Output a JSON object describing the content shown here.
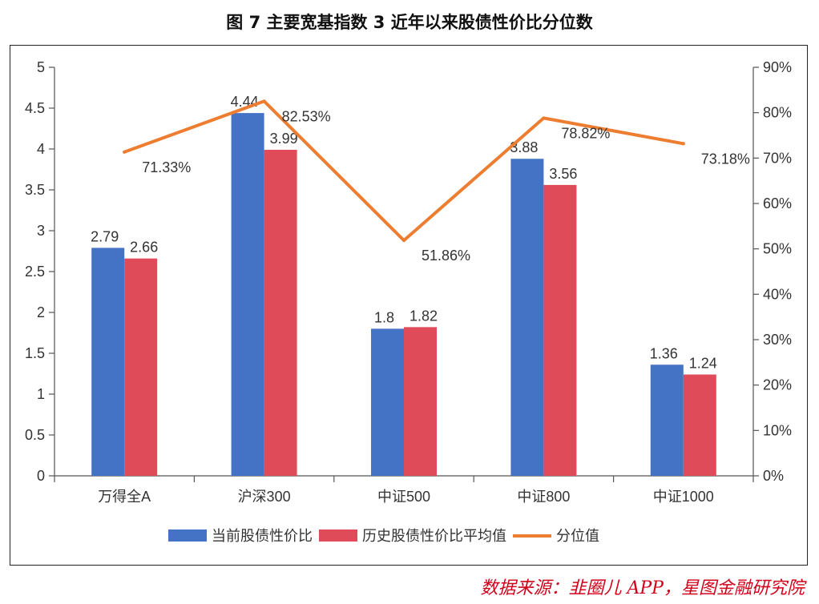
{
  "title": "图 7 主要宽基指数 3 近年以来股债性价比分位数",
  "source": "数据来源：韭圈儿 APP，星图金融研究院",
  "chart_data": {
    "type": "bar",
    "categories": [
      "万得全A",
      "沪深300",
      "中证500",
      "中证800",
      "中证1000"
    ],
    "series": [
      {
        "name": "当前股债性价比",
        "type": "bar",
        "axis": "left",
        "color": "#4472c4",
        "values": [
          2.79,
          4.44,
          1.8,
          3.88,
          1.36
        ],
        "labels": [
          "2.79",
          "4.44",
          "1.8",
          "3.88",
          "1.36"
        ]
      },
      {
        "name": "历史股债性价比平均值",
        "type": "bar",
        "axis": "left",
        "color": "#e04b5a",
        "values": [
          2.66,
          3.99,
          1.82,
          3.56,
          1.24
        ],
        "labels": [
          "2.66",
          "3.99",
          "1.82",
          "3.56",
          "1.24"
        ]
      },
      {
        "name": "分位值",
        "type": "line",
        "axis": "right",
        "color": "#ed7d31",
        "values": [
          71.33,
          82.53,
          51.86,
          78.82,
          73.18
        ],
        "labels": [
          "71.33%",
          "82.53%",
          "51.86%",
          "78.82%",
          "73.18%"
        ]
      }
    ],
    "y_left": {
      "min": 0,
      "max": 5,
      "ticks": [
        "0",
        "0.5",
        "1",
        "1.5",
        "2",
        "2.5",
        "3",
        "3.5",
        "4",
        "4.5",
        "5"
      ]
    },
    "y_right": {
      "min": 0,
      "max": 90,
      "ticks": [
        "0%",
        "10%",
        "20%",
        "30%",
        "40%",
        "50%",
        "60%",
        "70%",
        "80%",
        "90%"
      ]
    },
    "legend_position": "bottom",
    "grid": false
  }
}
